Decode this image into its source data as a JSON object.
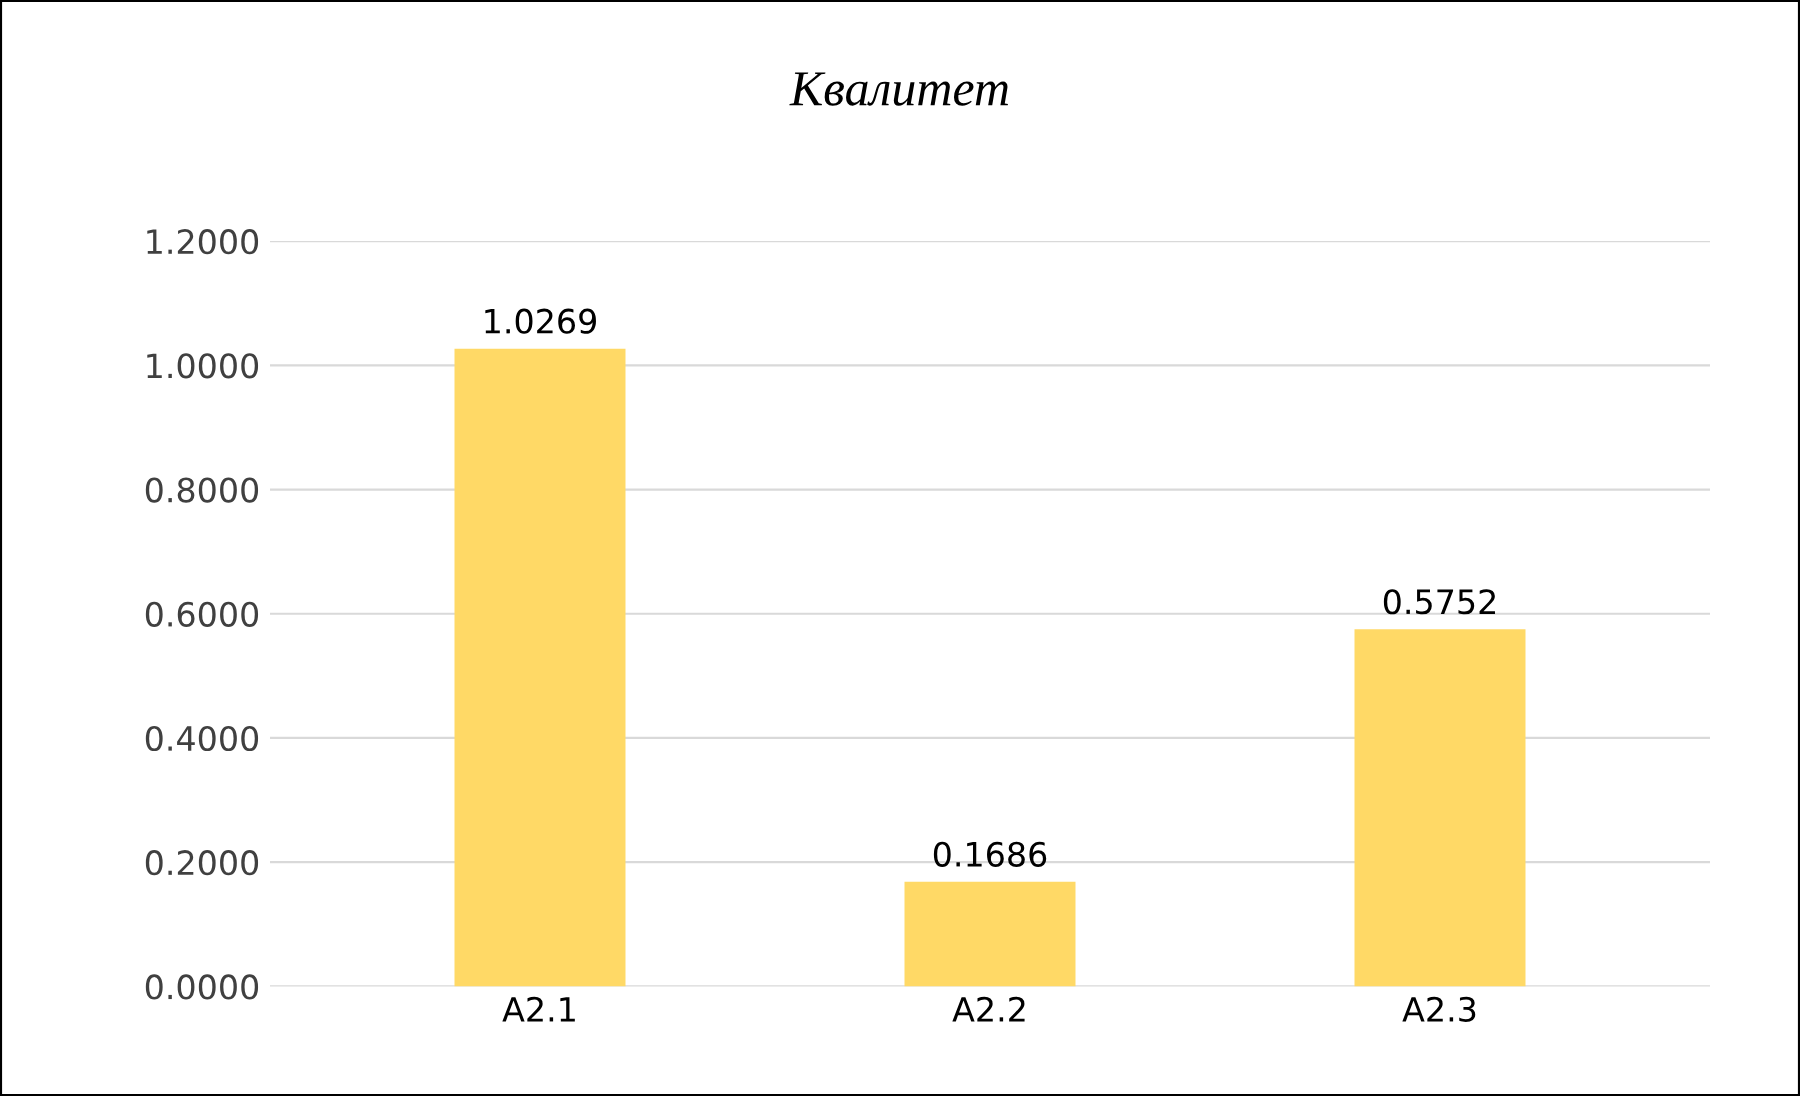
{
  "chart_data": {
    "type": "bar",
    "title": "Квалитет",
    "categories": [
      "A2.1",
      "A2.2",
      "A2.3"
    ],
    "values": [
      1.0269,
      0.1686,
      0.5752
    ],
    "color": "#ffd966",
    "ylim": [
      0,
      1.2
    ],
    "yticks": [
      {
        "value": 0,
        "label": "0.0000"
      },
      {
        "value": 0.2,
        "label": "0.2000"
      },
      {
        "value": 0.4,
        "label": "0.4000"
      },
      {
        "value": 0.6,
        "label": "0.6000"
      },
      {
        "value": 0.8,
        "label": "0.8000"
      },
      {
        "value": 1.0,
        "label": "1.0000"
      },
      {
        "value": 1.2,
        "label": "1.2000"
      }
    ],
    "grid": "y",
    "data_labels": true,
    "legend": false
  }
}
